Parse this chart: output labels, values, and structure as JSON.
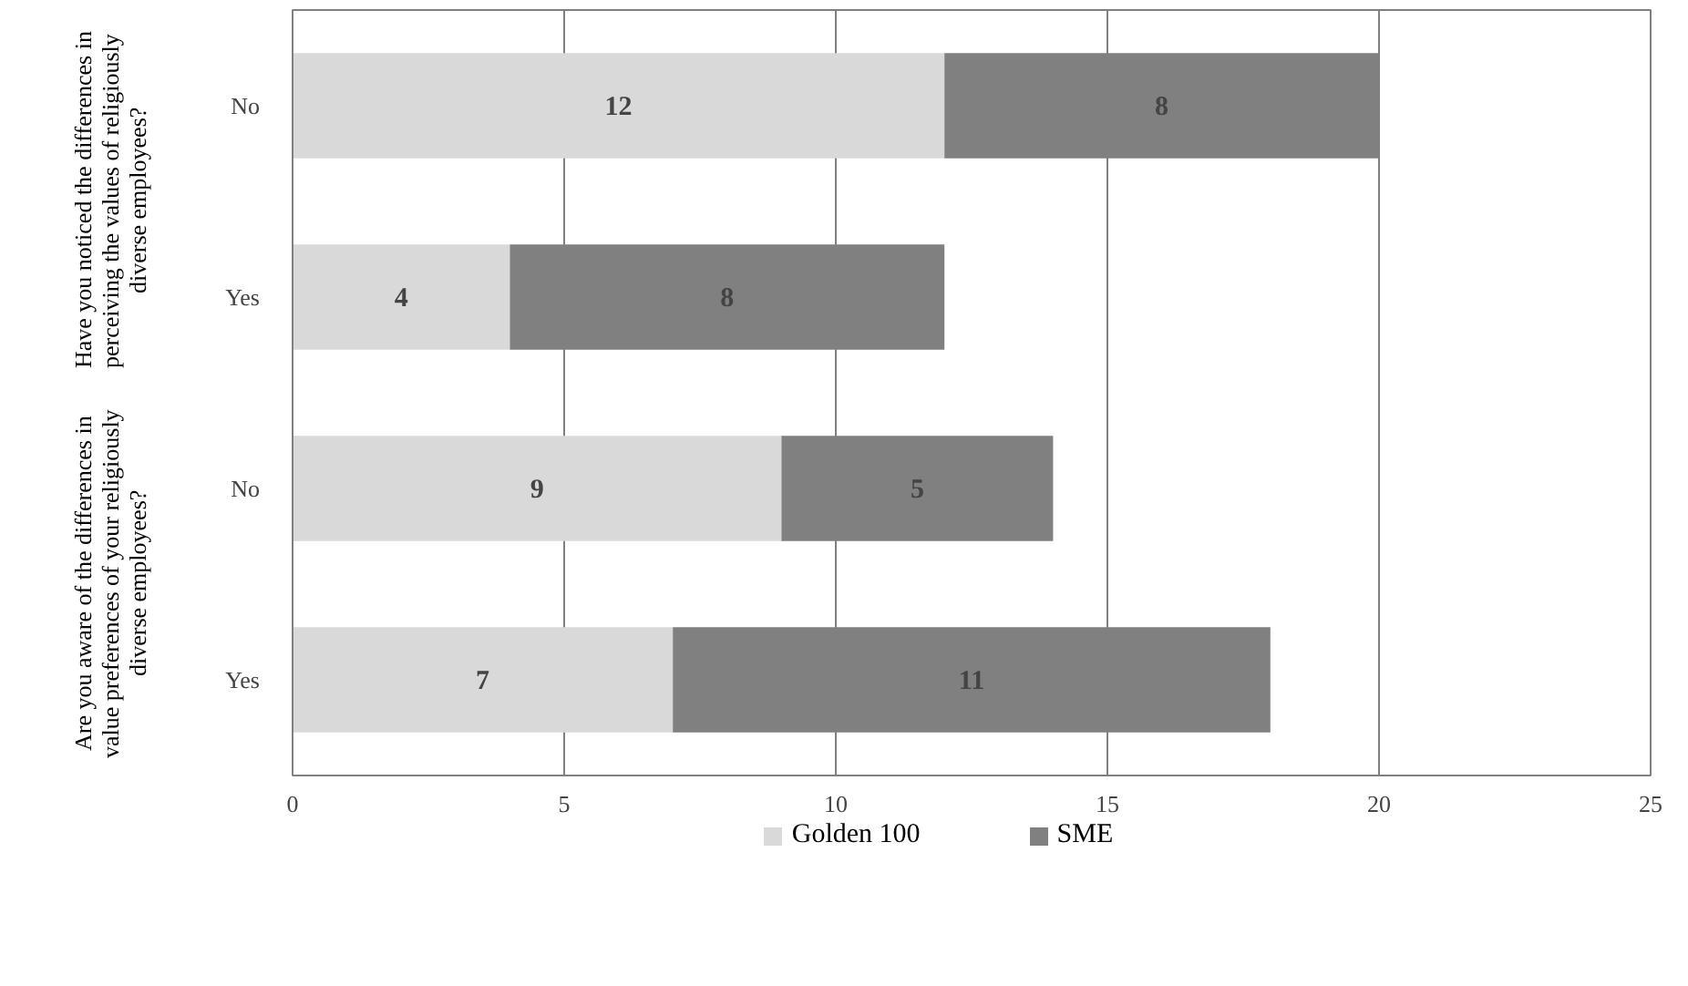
{
  "chart_data": {
    "type": "bar",
    "orientation": "horizontal",
    "stacked": true,
    "categories": [
      "No",
      "Yes",
      "No",
      "Yes"
    ],
    "series": [
      {
        "name": "Golden 100",
        "color": "#d9d9d9",
        "values": [
          12,
          4,
          9,
          7
        ]
      },
      {
        "name": "SME",
        "color": "#808080",
        "values": [
          8,
          8,
          5,
          11
        ]
      }
    ],
    "xlim": [
      0,
      25
    ],
    "xticks": [
      0,
      5,
      10,
      15,
      20,
      25
    ],
    "grid": "x",
    "data_labels": true,
    "legend": "bottom",
    "annotations": [
      "Have you noticed the differences in perceiving the values of religiously diverse employees?",
      "Are you aware of the differences in value preferences of your religiously diverse employees?"
    ]
  }
}
